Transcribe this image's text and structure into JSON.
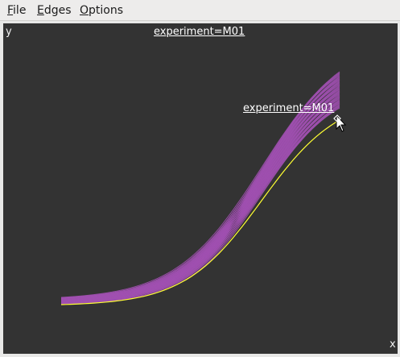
{
  "menu": {
    "file": {
      "mnemonic": "F",
      "rest": "ile"
    },
    "edges": {
      "mnemonic": "E",
      "rest": "dges"
    },
    "options": {
      "mnemonic": "O",
      "rest": "ptions"
    }
  },
  "plot": {
    "title": "experiment=M01",
    "hover_label": "experiment=M01",
    "y_label": "y",
    "x_label": "x",
    "background_color": "#333333",
    "series_color": "#a050b0",
    "highlight_color": "#ffff33",
    "cursor_icon": "arrow-cursor-icon"
  },
  "chart_data": {
    "type": "line",
    "title": "experiment=M01",
    "xlabel": "x",
    "ylabel": "y",
    "series_count": 40,
    "highlighted_series": "experiment=M01"
  }
}
